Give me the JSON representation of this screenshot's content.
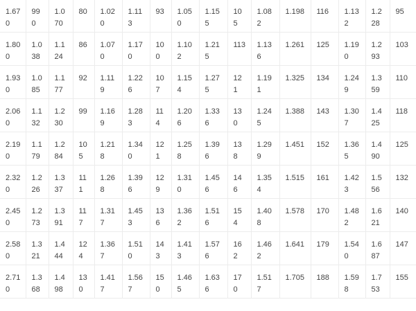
{
  "table": {
    "rows": [
      [
        "1.670",
        "990",
        "1.070",
        "80",
        "1.020",
        "1.113",
        "93",
        "1.050",
        "1.155",
        "105",
        "1.082",
        "1.198",
        "116",
        "1.132",
        "1.228",
        "95"
      ],
      [
        "1.800",
        "1.038",
        "1.124",
        "86",
        "1.070",
        "1.170",
        "100",
        "1.102",
        "1.215",
        "113",
        "1.136",
        "1.261",
        "125",
        "1.190",
        "1.293",
        "103"
      ],
      [
        "1.930",
        "1.085",
        "1.177",
        "92",
        "1.119",
        "1.226",
        "107",
        "1.154",
        "1.275",
        "121",
        "1.191",
        "1.325",
        "134",
        "1.249",
        "1.359",
        "110"
      ],
      [
        "2.060",
        "1.132",
        "1.230",
        "99",
        "1.169",
        "1.283",
        "114",
        "1.206",
        "1.336",
        "130",
        "1.245",
        "1.388",
        "143",
        "1.307",
        "1.425",
        "118"
      ],
      [
        "2.190",
        "1.179",
        "1.284",
        "105",
        "1.218",
        "1.340",
        "121",
        "1.258",
        "1.396",
        "138",
        "1.299",
        "1.451",
        "152",
        "1.365",
        "1.490",
        "125"
      ],
      [
        "2.320",
        "1.226",
        "1.337",
        "111",
        "1.268",
        "1.396",
        "129",
        "1.310",
        "1.456",
        "146",
        "1.354",
        "1.515",
        "161",
        "1.423",
        "1.556",
        "132"
      ],
      [
        "2.450",
        "1.273",
        "1.391",
        "117",
        "1.317",
        "1.453",
        "136",
        "1.362",
        "1.516",
        "154",
        "1.408",
        "1.578",
        "170",
        "1.482",
        "1.621",
        "140"
      ],
      [
        "2.580",
        "1.321",
        "1.444",
        "124",
        "1.367",
        "1.510",
        "143",
        "1.413",
        "1.576",
        "162",
        "1.462",
        "1.641",
        "179",
        "1.540",
        "1.687",
        "147"
      ],
      [
        "2.710",
        "1.368",
        "1.498",
        "130",
        "1.417",
        "1.567",
        "150",
        "1.465",
        "1.636",
        "170",
        "1.517",
        "1.705",
        "188",
        "1.598",
        "1.753",
        "155"
      ]
    ]
  }
}
